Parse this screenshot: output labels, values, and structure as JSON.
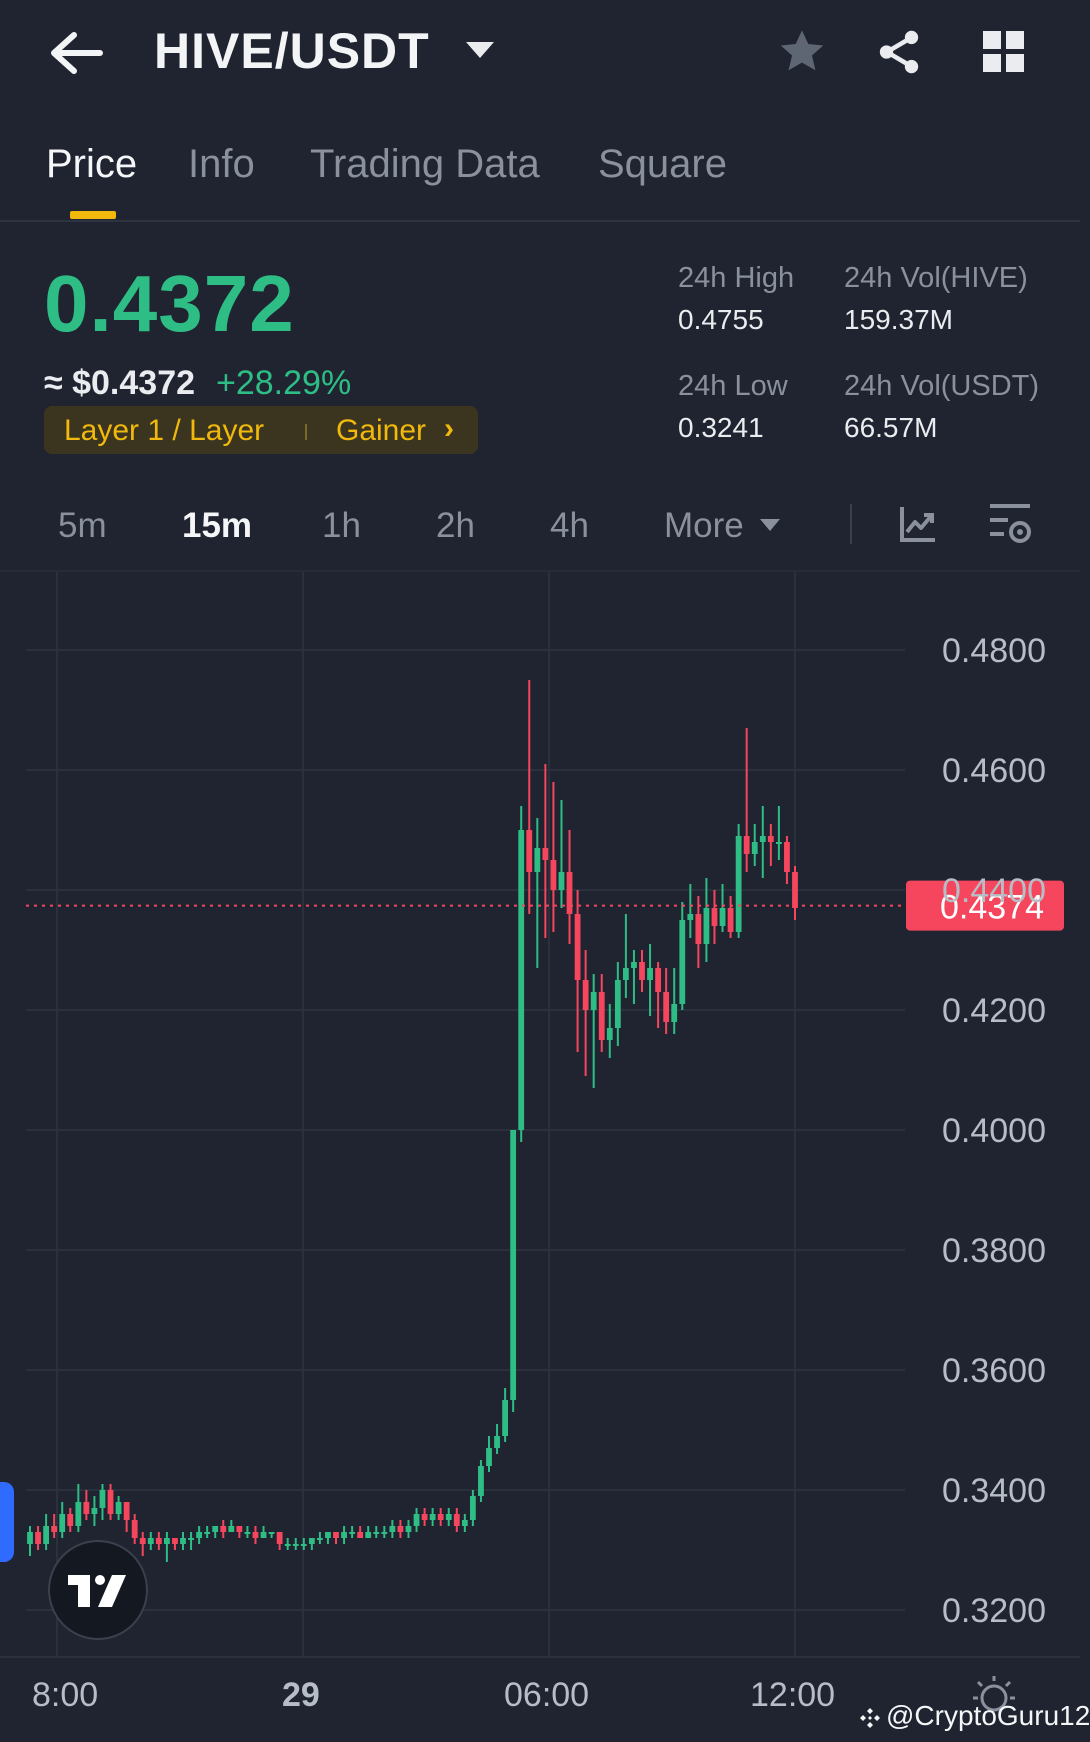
{
  "header": {
    "pair": "HIVE/USDT",
    "icons": [
      "back-arrow-icon",
      "caret-down-icon",
      "star-icon",
      "share-icon",
      "grid-icon"
    ]
  },
  "tabs": [
    {
      "label": "Price",
      "active": true
    },
    {
      "label": "Info",
      "active": false
    },
    {
      "label": "Trading Data",
      "active": false
    },
    {
      "label": "Square",
      "active": false
    }
  ],
  "ticker": {
    "last_price": "0.4372",
    "usd_price": "≈ $0.4372",
    "change": "+28.29%",
    "tags": [
      "Layer 1 / Layer",
      "Gainer"
    ],
    "tag_arrow": "›",
    "stats": {
      "high_label": "24h High",
      "high_value": "0.4755",
      "low_label": "24h Low",
      "low_value": "0.3241",
      "vol_base_label": "24h Vol(HIVE)",
      "vol_base_value": "159.37M",
      "vol_quote_label": "24h Vol(USDT)",
      "vol_quote_value": "66.57M"
    }
  },
  "intervals": [
    {
      "label": "5m",
      "active": false
    },
    {
      "label": "15m",
      "active": true
    },
    {
      "label": "1h",
      "active": false
    },
    {
      "label": "2h",
      "active": false
    },
    {
      "label": "4h",
      "active": false
    },
    {
      "label": "More",
      "active": false
    }
  ],
  "colors": {
    "up": "#2ebd85",
    "down": "#f6465d",
    "accent": "#f0b90b",
    "background": "#1f2430"
  },
  "watermark": "@CryptoGuru12",
  "chart_data": {
    "type": "candlestick",
    "interval": "15m",
    "ylim": [
      0.31,
      0.49
    ],
    "yticks": [
      "0.4800",
      "0.4600",
      "0.4400",
      "0.4200",
      "0.4000",
      "0.3800",
      "0.3600",
      "0.3400",
      "0.3200"
    ],
    "xticks": [
      "8:00",
      "29",
      "06:00",
      "12:00"
    ],
    "current_price_label": "0.4374",
    "current_price": 0.4374,
    "candles": [
      [
        0.331,
        0.333,
        0.334,
        0.329
      ],
      [
        0.333,
        0.331,
        0.334,
        0.33
      ],
      [
        0.331,
        0.334,
        0.336,
        0.33
      ],
      [
        0.334,
        0.333,
        0.336,
        0.332
      ],
      [
        0.333,
        0.336,
        0.338,
        0.332
      ],
      [
        0.336,
        0.334,
        0.337,
        0.333
      ],
      [
        0.334,
        0.338,
        0.341,
        0.333
      ],
      [
        0.338,
        0.336,
        0.34,
        0.335
      ],
      [
        0.336,
        0.337,
        0.339,
        0.334
      ],
      [
        0.337,
        0.34,
        0.341,
        0.335
      ],
      [
        0.34,
        0.336,
        0.341,
        0.335
      ],
      [
        0.336,
        0.338,
        0.339,
        0.335
      ],
      [
        0.338,
        0.335,
        0.338,
        0.333
      ],
      [
        0.335,
        0.332,
        0.336,
        0.331
      ],
      [
        0.332,
        0.331,
        0.333,
        0.329
      ],
      [
        0.331,
        0.332,
        0.333,
        0.33
      ],
      [
        0.332,
        0.331,
        0.333,
        0.33
      ],
      [
        0.331,
        0.332,
        0.333,
        0.328
      ],
      [
        0.332,
        0.331,
        0.332,
        0.33
      ],
      [
        0.331,
        0.332,
        0.333,
        0.33
      ],
      [
        0.332,
        0.332,
        0.333,
        0.33
      ],
      [
        0.332,
        0.333,
        0.334,
        0.331
      ],
      [
        0.333,
        0.333,
        0.334,
        0.332
      ],
      [
        0.333,
        0.334,
        0.334,
        0.332
      ],
      [
        0.334,
        0.333,
        0.335,
        0.332
      ],
      [
        0.333,
        0.334,
        0.335,
        0.333
      ],
      [
        0.334,
        0.333,
        0.334,
        0.332
      ],
      [
        0.333,
        0.333,
        0.334,
        0.332
      ],
      [
        0.333,
        0.332,
        0.334,
        0.331
      ],
      [
        0.332,
        0.333,
        0.334,
        0.332
      ],
      [
        0.333,
        0.333,
        0.333,
        0.332
      ],
      [
        0.333,
        0.331,
        0.333,
        0.33
      ],
      [
        0.331,
        0.331,
        0.332,
        0.33
      ],
      [
        0.331,
        0.331,
        0.332,
        0.33
      ],
      [
        0.331,
        0.331,
        0.332,
        0.33
      ],
      [
        0.331,
        0.332,
        0.332,
        0.33
      ],
      [
        0.332,
        0.332,
        0.333,
        0.331
      ],
      [
        0.332,
        0.333,
        0.333,
        0.331
      ],
      [
        0.333,
        0.332,
        0.333,
        0.331
      ],
      [
        0.332,
        0.333,
        0.334,
        0.331
      ],
      [
        0.333,
        0.333,
        0.334,
        0.332
      ],
      [
        0.333,
        0.332,
        0.334,
        0.332
      ],
      [
        0.332,
        0.333,
        0.334,
        0.332
      ],
      [
        0.333,
        0.333,
        0.334,
        0.332
      ],
      [
        0.333,
        0.333,
        0.334,
        0.332
      ],
      [
        0.333,
        0.334,
        0.335,
        0.332
      ],
      [
        0.334,
        0.333,
        0.335,
        0.332
      ],
      [
        0.333,
        0.334,
        0.335,
        0.332
      ],
      [
        0.334,
        0.336,
        0.337,
        0.333
      ],
      [
        0.336,
        0.335,
        0.337,
        0.334
      ],
      [
        0.335,
        0.336,
        0.337,
        0.334
      ],
      [
        0.336,
        0.335,
        0.337,
        0.334
      ],
      [
        0.335,
        0.336,
        0.337,
        0.334
      ],
      [
        0.336,
        0.334,
        0.337,
        0.333
      ],
      [
        0.334,
        0.335,
        0.336,
        0.333
      ],
      [
        0.335,
        0.339,
        0.34,
        0.334
      ],
      [
        0.339,
        0.344,
        0.345,
        0.338
      ],
      [
        0.344,
        0.347,
        0.349,
        0.343
      ],
      [
        0.347,
        0.349,
        0.351,
        0.346
      ],
      [
        0.349,
        0.355,
        0.357,
        0.348
      ],
      [
        0.355,
        0.4,
        0.4,
        0.353
      ],
      [
        0.4,
        0.45,
        0.454,
        0.398
      ],
      [
        0.45,
        0.443,
        0.475,
        0.436
      ],
      [
        0.443,
        0.447,
        0.452,
        0.427
      ],
      [
        0.447,
        0.445,
        0.461,
        0.432
      ],
      [
        0.445,
        0.44,
        0.458,
        0.433
      ],
      [
        0.44,
        0.443,
        0.455,
        0.437
      ],
      [
        0.443,
        0.436,
        0.45,
        0.431
      ],
      [
        0.436,
        0.425,
        0.44,
        0.413
      ],
      [
        0.425,
        0.42,
        0.43,
        0.409
      ],
      [
        0.42,
        0.423,
        0.426,
        0.407
      ],
      [
        0.423,
        0.415,
        0.426,
        0.413
      ],
      [
        0.415,
        0.417,
        0.421,
        0.412
      ],
      [
        0.417,
        0.425,
        0.428,
        0.414
      ],
      [
        0.425,
        0.427,
        0.436,
        0.422
      ],
      [
        0.427,
        0.428,
        0.43,
        0.421
      ],
      [
        0.428,
        0.425,
        0.43,
        0.423
      ],
      [
        0.425,
        0.427,
        0.431,
        0.419
      ],
      [
        0.427,
        0.423,
        0.428,
        0.417
      ],
      [
        0.423,
        0.418,
        0.427,
        0.416
      ],
      [
        0.418,
        0.421,
        0.427,
        0.416
      ],
      [
        0.421,
        0.435,
        0.438,
        0.42
      ],
      [
        0.435,
        0.436,
        0.441,
        0.432
      ],
      [
        0.436,
        0.431,
        0.439,
        0.427
      ],
      [
        0.431,
        0.437,
        0.442,
        0.428
      ],
      [
        0.437,
        0.434,
        0.44,
        0.431
      ],
      [
        0.434,
        0.437,
        0.441,
        0.433
      ],
      [
        0.437,
        0.433,
        0.439,
        0.432
      ],
      [
        0.433,
        0.449,
        0.451,
        0.432
      ],
      [
        0.449,
        0.446,
        0.467,
        0.443
      ],
      [
        0.446,
        0.448,
        0.451,
        0.444
      ],
      [
        0.448,
        0.449,
        0.454,
        0.442
      ],
      [
        0.449,
        0.448,
        0.451,
        0.444
      ],
      [
        0.448,
        0.448,
        0.454,
        0.445
      ],
      [
        0.448,
        0.443,
        0.449,
        0.441
      ],
      [
        0.443,
        0.437,
        0.444,
        0.435
      ]
    ]
  }
}
